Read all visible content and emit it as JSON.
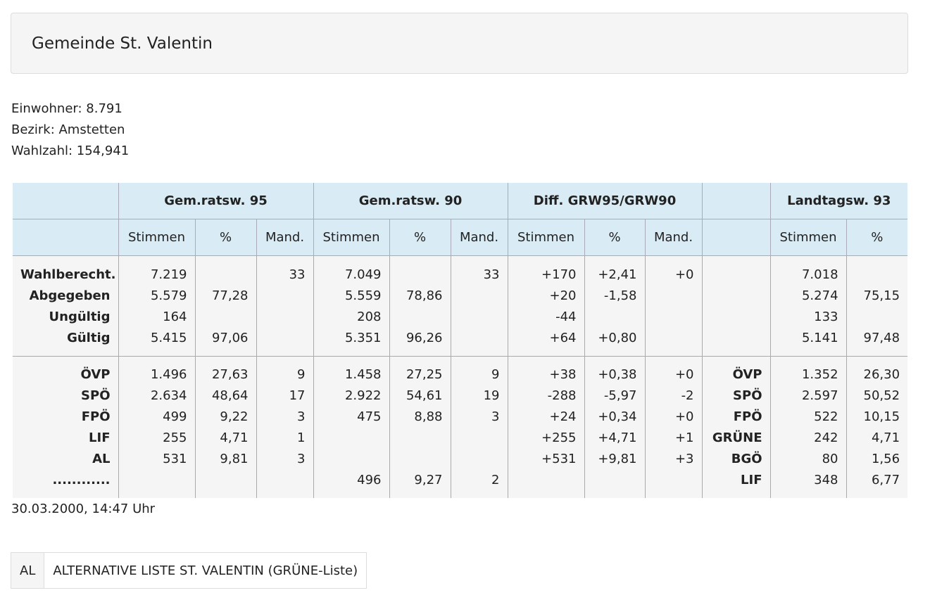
{
  "title": "Gemeinde St. Valentin",
  "info": [
    "Einwohner: 8.791",
    "Bezirk: Amstetten",
    "Wahlzahl: 154,941"
  ],
  "table": {
    "groups": [
      "",
      "Gem.ratsw. 95",
      "Gem.ratsw. 90",
      "Diff. GRW95/GRW90",
      "",
      "Landtagsw. 93"
    ],
    "subheaders": [
      "",
      "Stimmen",
      "%",
      "Mand.",
      "Stimmen",
      "%",
      "Mand.",
      "Stimmen",
      "%",
      "Mand.",
      "",
      "Stimmen",
      "%"
    ],
    "summary_rows": [
      [
        "Wahlberecht.",
        "7.219",
        "",
        "33",
        "7.049",
        "",
        "33",
        "+170",
        "+2,41",
        "+0",
        "",
        "7.018",
        ""
      ],
      [
        "Abgegeben",
        "5.579",
        "77,28",
        "",
        "5.559",
        "78,86",
        "",
        "+20",
        "-1,58",
        "",
        "",
        "5.274",
        "75,15"
      ],
      [
        "Ungültig",
        "164",
        "",
        "",
        "208",
        "",
        "",
        "-44",
        "",
        "",
        "",
        "133",
        ""
      ],
      [
        "Gültig",
        "5.415",
        "97,06",
        "",
        "5.351",
        "96,26",
        "",
        "+64",
        "+0,80",
        "",
        "",
        "5.141",
        "97,48"
      ]
    ],
    "party_rows": [
      [
        "ÖVP",
        "1.496",
        "27,63",
        "9",
        "1.458",
        "27,25",
        "9",
        "+38",
        "+0,38",
        "+0",
        "ÖVP",
        "1.352",
        "26,30"
      ],
      [
        "SPÖ",
        "2.634",
        "48,64",
        "17",
        "2.922",
        "54,61",
        "19",
        "-288",
        "-5,97",
        "-2",
        "SPÖ",
        "2.597",
        "50,52"
      ],
      [
        "FPÖ",
        "499",
        "9,22",
        "3",
        "475",
        "8,88",
        "3",
        "+24",
        "+0,34",
        "+0",
        "FPÖ",
        "522",
        "10,15"
      ],
      [
        "LIF",
        "255",
        "4,71",
        "1",
        "",
        "",
        "",
        "+255",
        "+4,71",
        "+1",
        "GRÜNE",
        "242",
        "4,71"
      ],
      [
        "AL",
        "531",
        "9,81",
        "3",
        "",
        "",
        "",
        "+531",
        "+9,81",
        "+3",
        "BGÖ",
        "80",
        "1,56"
      ],
      [
        "............",
        "",
        "",
        "",
        "496",
        "9,27",
        "2",
        "",
        "",
        "",
        "LIF",
        "348",
        "6,77"
      ]
    ]
  },
  "timestamp": "30.03.2000, 14:47 Uhr",
  "legend": {
    "abbr": "AL",
    "name": "ALTERNATIVE LISTE ST. VALENTIN (GRÜNE-Liste)"
  }
}
